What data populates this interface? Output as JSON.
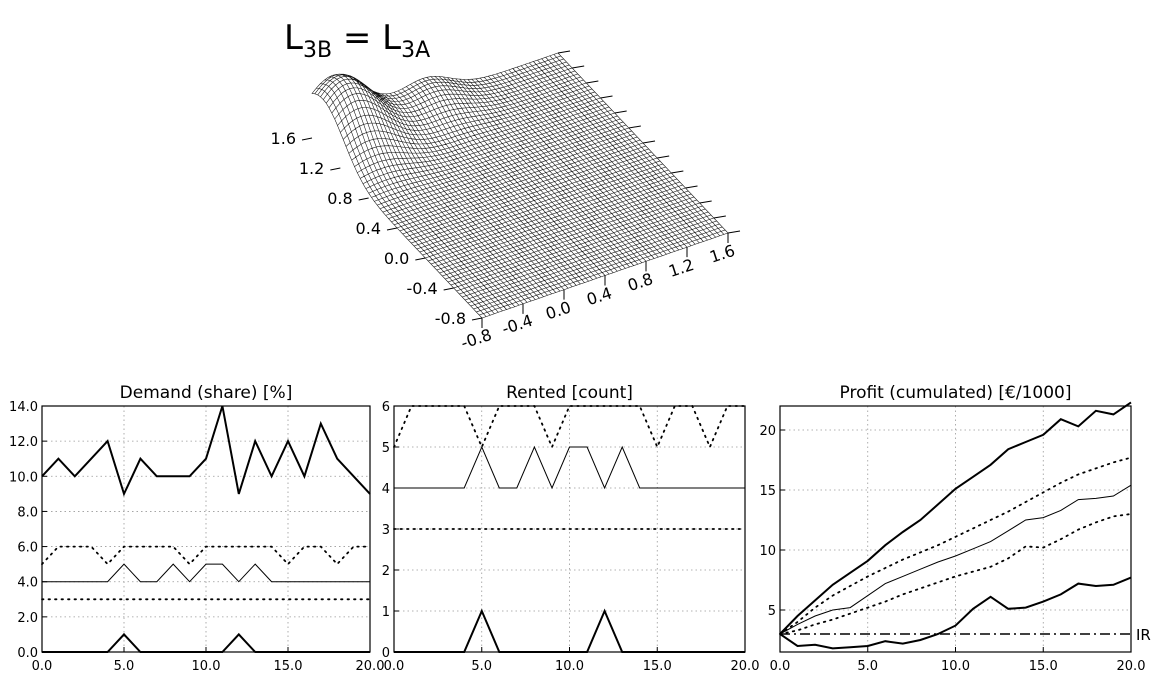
{
  "surface": {
    "title_main": "L",
    "title_sub_left": "3B",
    "title_eq": " = ",
    "title_main2": "L",
    "title_sub_right": "3A",
    "left_axis_ticks": [
      "1.6",
      "1.2",
      "0.8",
      "0.4",
      "0.0",
      "-0.4",
      "-0.8"
    ],
    "front_axis_ticks": [
      "-0.8",
      "-0.4",
      "0.0",
      "0.4",
      "0.8",
      "1.2",
      "1.6"
    ],
    "range": [
      -0.8,
      1.6
    ]
  },
  "chart_data": [
    {
      "type": "line",
      "title": "Demand (share) [%]",
      "xlim": [
        0,
        20
      ],
      "ylim": [
        0,
        14
      ],
      "x_ticks": [
        "0.0",
        "5.0",
        "10.0",
        "15.0",
        "20.0"
      ],
      "y_ticks": [
        "0.0",
        "2.0",
        "4.0",
        "6.0",
        "8.0",
        "10.0",
        "12.0",
        "14.0"
      ],
      "grid": true,
      "series": [
        {
          "style": "thick",
          "x": [
            0,
            1,
            2,
            3,
            4,
            5,
            6,
            7,
            8,
            9,
            10,
            11,
            12,
            13,
            14,
            15,
            16,
            17,
            18,
            19,
            20
          ],
          "values": [
            10,
            11,
            10,
            11,
            12,
            9,
            11,
            10,
            10,
            10,
            11,
            14,
            9,
            12,
            10,
            12,
            10,
            13,
            11,
            10,
            9
          ]
        },
        {
          "style": "thin",
          "x": [
            0,
            1,
            2,
            3,
            4,
            5,
            6,
            7,
            8,
            9,
            10,
            11,
            12,
            13,
            14,
            15,
            16,
            17,
            18,
            19,
            20
          ],
          "values": [
            4,
            4,
            4,
            4,
            4,
            5,
            4,
            4,
            5,
            4,
            5,
            5,
            4,
            5,
            4,
            4,
            4,
            4,
            4,
            4,
            4
          ]
        },
        {
          "style": "dotted",
          "x": [
            0,
            1,
            2,
            3,
            4,
            5,
            6,
            7,
            8,
            9,
            10,
            11,
            12,
            13,
            14,
            15,
            16,
            17,
            18,
            19,
            20
          ],
          "values": [
            5,
            6,
            6,
            6,
            5,
            6,
            6,
            6,
            6,
            5,
            6,
            6,
            6,
            6,
            6,
            5,
            6,
            6,
            5,
            6,
            6
          ]
        },
        {
          "style": "dotted",
          "x": [
            0,
            20
          ],
          "values": [
            3,
            3
          ]
        },
        {
          "style": "thick",
          "x": [
            0,
            1,
            2,
            3,
            4,
            5,
            6,
            7,
            8,
            9,
            10,
            11,
            12,
            13,
            14,
            15,
            16,
            17,
            18,
            19,
            20
          ],
          "values": [
            0,
            0,
            0,
            0,
            0,
            1,
            0,
            0,
            0,
            0,
            0,
            0,
            1,
            0,
            0,
            0,
            0,
            0,
            0,
            0,
            0
          ]
        }
      ]
    },
    {
      "type": "line",
      "title": "Rented [count]",
      "xlim": [
        0,
        20
      ],
      "ylim": [
        0,
        6
      ],
      "x_ticks": [
        "0.0",
        "5.0",
        "10.0",
        "15.0",
        "20.0"
      ],
      "y_ticks": [
        "0",
        "1",
        "2",
        "3",
        "4",
        "5",
        "6"
      ],
      "grid": true,
      "series": [
        {
          "style": "dotted",
          "x": [
            0,
            1,
            2,
            3,
            4,
            5,
            6,
            7,
            8,
            9,
            10,
            11,
            12,
            13,
            14,
            15,
            16,
            17,
            18,
            19,
            20
          ],
          "values": [
            5,
            6,
            6,
            6,
            6,
            5,
            6,
            6,
            6,
            5,
            6,
            6,
            6,
            6,
            6,
            5,
            6,
            6,
            5,
            6,
            6
          ]
        },
        {
          "style": "thin",
          "x": [
            0,
            1,
            2,
            3,
            4,
            5,
            6,
            7,
            8,
            9,
            10,
            11,
            12,
            13,
            14,
            15,
            16,
            17,
            18,
            19,
            20
          ],
          "values": [
            4,
            4,
            4,
            4,
            4,
            5,
            4,
            4,
            5,
            4,
            5,
            5,
            4,
            5,
            4,
            4,
            4,
            4,
            4,
            4,
            4
          ]
        },
        {
          "style": "dotted",
          "x": [
            0,
            20
          ],
          "values": [
            3,
            3
          ]
        },
        {
          "style": "thick",
          "x": [
            0,
            1,
            2,
            3,
            4,
            5,
            6,
            7,
            8,
            9,
            10,
            11,
            12,
            13,
            14,
            15,
            16,
            17,
            18,
            19,
            20
          ],
          "values": [
            0,
            0,
            0,
            0,
            0,
            1,
            0,
            0,
            0,
            0,
            0,
            0,
            1,
            0,
            0,
            0,
            0,
            0,
            0,
            0,
            0
          ]
        }
      ]
    },
    {
      "type": "line",
      "title": "Profit (cumulated) [€/1000]",
      "xlim": [
        0,
        20
      ],
      "ylim": [
        1.5,
        22
      ],
      "x_ticks": [
        "0.0",
        "5.0",
        "10.0",
        "15.0",
        "20.0"
      ],
      "y_ticks": [
        "5",
        "10",
        "15",
        "20"
      ],
      "y_tick_values": [
        5,
        10,
        15,
        20
      ],
      "grid": true,
      "annotation": "IR",
      "series": [
        {
          "style": "thick",
          "x": [
            0,
            1,
            2,
            3,
            4,
            5,
            6,
            7,
            8,
            9,
            10,
            11,
            12,
            13,
            14,
            15,
            16,
            17,
            18,
            19,
            20
          ],
          "values": [
            3,
            4.5,
            5.8,
            7.1,
            8.1,
            9.1,
            10.4,
            11.5,
            12.5,
            13.8,
            15.1,
            16.1,
            17.1,
            18.4,
            19,
            19.6,
            20.9,
            20.3,
            21.6,
            21.3,
            22.3
          ]
        },
        {
          "style": "dotted",
          "x": [
            0,
            1,
            2,
            3,
            4,
            5,
            6,
            7,
            8,
            9,
            10,
            11,
            12,
            13,
            14,
            15,
            16,
            17,
            18,
            19,
            20
          ],
          "values": [
            3,
            4,
            5.2,
            6.2,
            7,
            7.8,
            8.5,
            9.2,
            9.8,
            10.4,
            11.1,
            11.8,
            12.5,
            13.2,
            14,
            14.8,
            15.6,
            16.3,
            16.8,
            17.3,
            17.7
          ]
        },
        {
          "style": "thin",
          "x": [
            0,
            1,
            2,
            3,
            4,
            5,
            6,
            7,
            8,
            9,
            10,
            11,
            12,
            13,
            14,
            15,
            16,
            17,
            18,
            19,
            20
          ],
          "values": [
            3,
            3.8,
            4.5,
            5,
            5.2,
            6.2,
            7.2,
            7.8,
            8.4,
            9,
            9.5,
            10.1,
            10.7,
            11.6,
            12.5,
            12.7,
            13.3,
            14.2,
            14.3,
            14.5,
            15.4
          ]
        },
        {
          "style": "dotted",
          "x": [
            0,
            1,
            2,
            3,
            4,
            5,
            6,
            7,
            8,
            9,
            10,
            11,
            12,
            13,
            14,
            15,
            16,
            17,
            18,
            19,
            20
          ],
          "values": [
            3,
            3.3,
            3.8,
            4.2,
            4.7,
            5.2,
            5.7,
            6.3,
            6.8,
            7.3,
            7.8,
            8.2,
            8.6,
            9.3,
            10.3,
            10.2,
            10.9,
            11.7,
            12.3,
            12.8,
            13
          ]
        },
        {
          "style": "thick",
          "x": [
            0,
            1,
            2,
            3,
            4,
            5,
            6,
            7,
            8,
            9,
            10,
            11,
            12,
            13,
            14,
            15,
            16,
            17,
            18,
            19,
            20
          ],
          "values": [
            3,
            2,
            2.1,
            1.8,
            1.9,
            2,
            2.4,
            2.2,
            2.5,
            3,
            3.7,
            5.1,
            6.1,
            5.1,
            5.2,
            5.7,
            6.3,
            7.2,
            7,
            7.1,
            7.7
          ]
        },
        {
          "style": "dashdot",
          "x": [
            0,
            20
          ],
          "values": [
            3,
            3
          ]
        }
      ]
    }
  ]
}
